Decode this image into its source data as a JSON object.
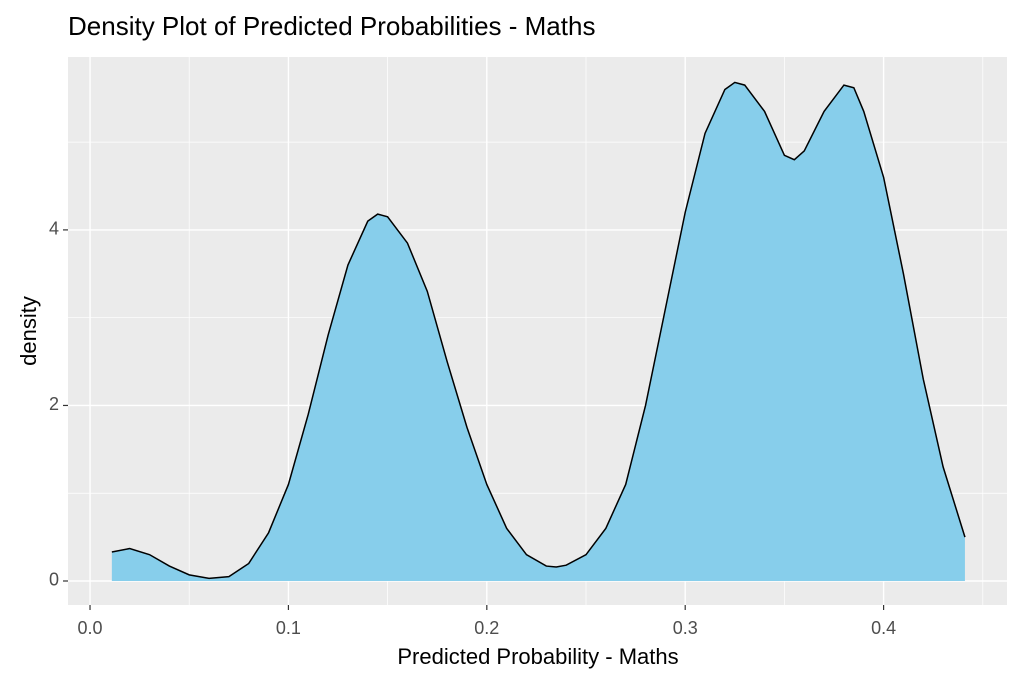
{
  "chart_data": {
    "type": "density",
    "title": "Density Plot of Predicted Probabilities - Maths",
    "x_label": "Predicted Probability - Maths",
    "y_label": "density",
    "x": [
      0.011,
      0.02,
      0.03,
      0.04,
      0.05,
      0.06,
      0.07,
      0.08,
      0.09,
      0.1,
      0.11,
      0.12,
      0.13,
      0.14,
      0.145,
      0.15,
      0.16,
      0.17,
      0.18,
      0.19,
      0.2,
      0.21,
      0.22,
      0.23,
      0.235,
      0.24,
      0.25,
      0.26,
      0.27,
      0.28,
      0.29,
      0.3,
      0.31,
      0.32,
      0.325,
      0.33,
      0.34,
      0.35,
      0.355,
      0.36,
      0.37,
      0.38,
      0.385,
      0.39,
      0.4,
      0.41,
      0.42,
      0.43,
      0.441
    ],
    "values": [
      0.33,
      0.37,
      0.3,
      0.17,
      0.07,
      0.03,
      0.05,
      0.2,
      0.55,
      1.1,
      1.9,
      2.8,
      3.6,
      4.1,
      4.18,
      4.15,
      3.85,
      3.3,
      2.5,
      1.75,
      1.1,
      0.6,
      0.3,
      0.17,
      0.16,
      0.18,
      0.3,
      0.6,
      1.1,
      2.0,
      3.1,
      4.2,
      5.1,
      5.6,
      5.68,
      5.65,
      5.35,
      4.85,
      4.8,
      4.9,
      5.35,
      5.65,
      5.62,
      5.35,
      4.6,
      3.5,
      2.3,
      1.3,
      0.5
    ],
    "fill": "#87ceeb",
    "color": "#000000",
    "xlim": [
      -0.0111,
      0.4622
    ],
    "ylim": [
      -0.2735,
      5.97
    ],
    "xticks": [
      {
        "value": 0,
        "label": "0.0"
      },
      0.1,
      0.2,
      0.3,
      0.4
    ],
    "yticks": [
      0,
      2,
      4
    ],
    "xminorticks": [
      0.05,
      0.15,
      0.25,
      0.35,
      0.45
    ],
    "yminorticks": [
      1,
      3,
      5
    ],
    "grid": true
  }
}
